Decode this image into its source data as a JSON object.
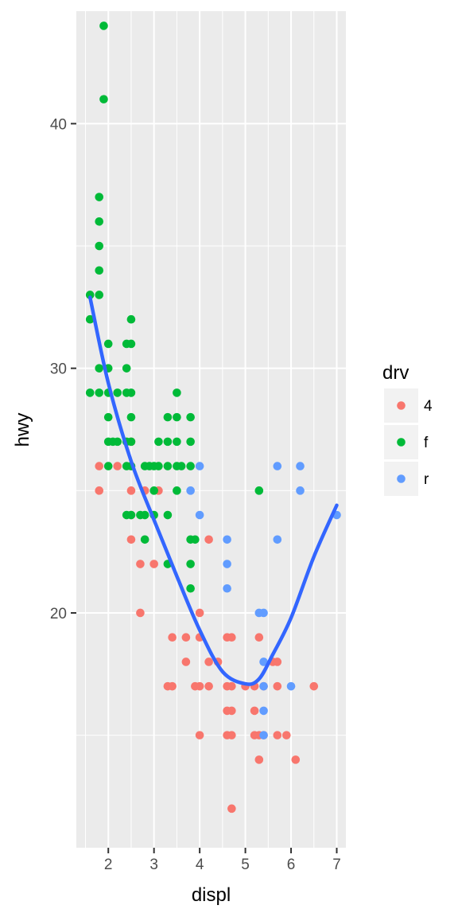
{
  "chart_data": {
    "type": "scatter",
    "xlabel": "displ",
    "ylabel": "hwy",
    "xlim": [
      1.3,
      7.2
    ],
    "ylim": [
      10.4,
      44.6
    ],
    "x_ticks": [
      2,
      3,
      4,
      5,
      6,
      7
    ],
    "y_ticks": [
      20,
      30,
      40
    ],
    "grid": true,
    "legend": {
      "title": "drv",
      "position": "right",
      "entries": [
        {
          "label": "4",
          "color": "#F8766D"
        },
        {
          "label": "f",
          "color": "#00BA38"
        },
        {
          "label": "r",
          "color": "#619CFF"
        }
      ]
    },
    "smooth_line": {
      "color": "#3366FF",
      "x": [
        1.6,
        2.0,
        2.5,
        3.0,
        3.5,
        4.0,
        4.5,
        5.0,
        5.3,
        5.6,
        6.0,
        6.5,
        7.0
      ],
      "y": [
        32.9,
        29.4,
        26.2,
        23.8,
        21.5,
        19.3,
        17.6,
        17.1,
        17.3,
        18.3,
        19.8,
        22.3,
        24.4
      ]
    },
    "series": [
      {
        "name": "4",
        "color": "#F8766D",
        "points": [
          [
            1.8,
            26
          ],
          [
            1.8,
            25
          ],
          [
            2.2,
            26
          ],
          [
            2.5,
            27
          ],
          [
            2.5,
            26
          ],
          [
            2.5,
            25
          ],
          [
            2.5,
            24
          ],
          [
            2.5,
            23
          ],
          [
            2.7,
            22
          ],
          [
            2.7,
            20
          ],
          [
            2.8,
            25
          ],
          [
            3.0,
            22
          ],
          [
            3.1,
            25
          ],
          [
            3.3,
            17
          ],
          [
            3.4,
            17
          ],
          [
            3.4,
            19
          ],
          [
            3.7,
            19
          ],
          [
            3.7,
            18
          ],
          [
            3.9,
            17
          ],
          [
            4.0,
            20
          ],
          [
            4.0,
            19
          ],
          [
            4.0,
            17
          ],
          [
            4.0,
            15
          ],
          [
            4.2,
            23
          ],
          [
            4.2,
            18
          ],
          [
            4.2,
            17
          ],
          [
            4.4,
            18
          ],
          [
            4.6,
            19
          ],
          [
            4.6,
            17
          ],
          [
            4.6,
            16
          ],
          [
            4.6,
            15
          ],
          [
            4.7,
            19
          ],
          [
            4.7,
            17
          ],
          [
            4.7,
            16
          ],
          [
            4.7,
            15
          ],
          [
            4.7,
            12
          ],
          [
            5.0,
            17
          ],
          [
            5.2,
            17
          ],
          [
            5.2,
            16
          ],
          [
            5.2,
            15
          ],
          [
            5.3,
            19
          ],
          [
            5.3,
            15
          ],
          [
            5.3,
            14
          ],
          [
            5.4,
            17
          ],
          [
            5.4,
            15
          ],
          [
            5.6,
            18
          ],
          [
            5.7,
            18
          ],
          [
            5.7,
            17
          ],
          [
            5.7,
            15
          ],
          [
            5.9,
            15
          ],
          [
            6.1,
            14
          ],
          [
            6.5,
            17
          ]
        ]
      },
      {
        "name": "f",
        "color": "#00BA38",
        "points": [
          [
            1.6,
            33
          ],
          [
            1.6,
            32
          ],
          [
            1.6,
            29
          ],
          [
            1.8,
            37
          ],
          [
            1.8,
            36
          ],
          [
            1.8,
            35
          ],
          [
            1.8,
            34
          ],
          [
            1.8,
            33
          ],
          [
            1.8,
            30
          ],
          [
            1.8,
            29
          ],
          [
            1.9,
            44
          ],
          [
            1.9,
            41
          ],
          [
            2.0,
            31
          ],
          [
            2.0,
            30
          ],
          [
            2.0,
            29
          ],
          [
            2.0,
            28
          ],
          [
            2.0,
            27
          ],
          [
            2.0,
            26
          ],
          [
            2.1,
            27
          ],
          [
            2.2,
            29
          ],
          [
            2.2,
            27
          ],
          [
            2.4,
            31
          ],
          [
            2.4,
            30
          ],
          [
            2.4,
            29
          ],
          [
            2.4,
            27
          ],
          [
            2.4,
            26
          ],
          [
            2.4,
            24
          ],
          [
            2.5,
            32
          ],
          [
            2.5,
            31
          ],
          [
            2.5,
            29
          ],
          [
            2.5,
            28
          ],
          [
            2.5,
            27
          ],
          [
            2.5,
            26
          ],
          [
            2.5,
            24
          ],
          [
            2.7,
            24
          ],
          [
            2.8,
            26
          ],
          [
            2.8,
            24
          ],
          [
            2.8,
            23
          ],
          [
            2.9,
            26
          ],
          [
            3.0,
            26
          ],
          [
            3.0,
            25
          ],
          [
            3.0,
            24
          ],
          [
            3.1,
            27
          ],
          [
            3.1,
            26
          ],
          [
            3.3,
            28
          ],
          [
            3.3,
            27
          ],
          [
            3.3,
            26
          ],
          [
            3.3,
            24
          ],
          [
            3.3,
            22
          ],
          [
            3.5,
            29
          ],
          [
            3.5,
            28
          ],
          [
            3.5,
            27
          ],
          [
            3.5,
            26
          ],
          [
            3.5,
            25
          ],
          [
            3.6,
            26
          ],
          [
            3.8,
            28
          ],
          [
            3.8,
            27
          ],
          [
            3.8,
            26
          ],
          [
            3.8,
            23
          ],
          [
            3.8,
            22
          ],
          [
            3.8,
            21
          ],
          [
            3.9,
            23
          ],
          [
            5.3,
            25
          ]
        ]
      },
      {
        "name": "r",
        "color": "#619CFF",
        "points": [
          [
            3.8,
            25
          ],
          [
            4.0,
            26
          ],
          [
            4.0,
            24
          ],
          [
            4.6,
            23
          ],
          [
            4.6,
            22
          ],
          [
            4.6,
            21
          ],
          [
            5.3,
            20
          ],
          [
            5.4,
            20
          ],
          [
            5.4,
            18
          ],
          [
            5.4,
            17
          ],
          [
            5.4,
            16
          ],
          [
            5.4,
            15
          ],
          [
            5.7,
            26
          ],
          [
            5.7,
            23
          ],
          [
            6.0,
            17
          ],
          [
            6.2,
            26
          ],
          [
            6.2,
            25
          ],
          [
            7.0,
            24
          ]
        ]
      }
    ]
  }
}
